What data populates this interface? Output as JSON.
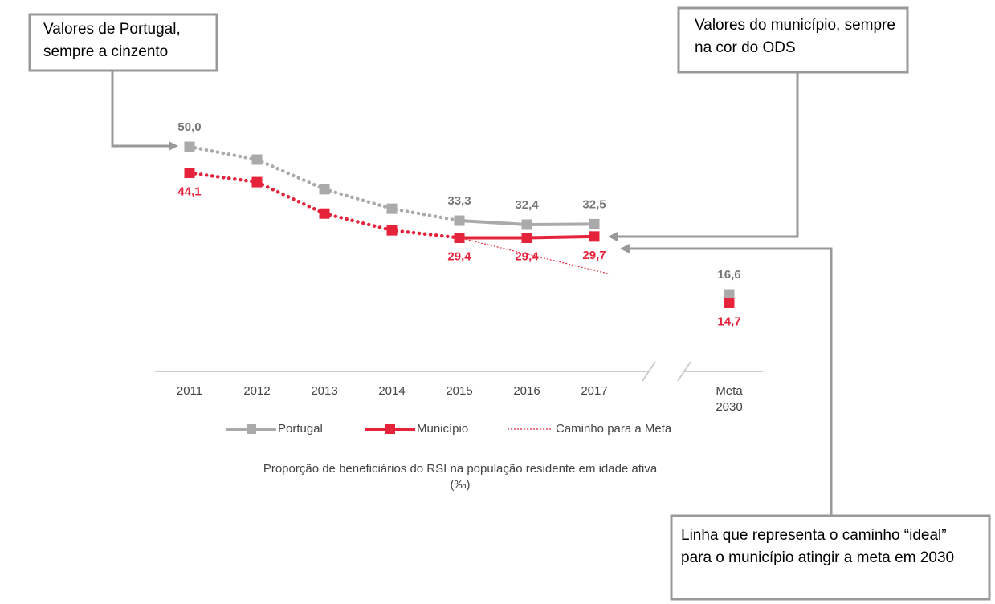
{
  "annotations": [
    "Valores de Portugal, sempre a cinzento",
    "Valores do município, sempre na cor do ODS",
    "Linha que representa o caminho “ideal” para o município atingir a meta em 2030"
  ],
  "chart_data": {
    "type": "line",
    "title": "Proporção de beneficiários do RSI na população residente em idade ativa (‰)",
    "categories": [
      "2011",
      "2012",
      "2013",
      "2014",
      "2015",
      "2016",
      "2017",
      "Meta 2030"
    ],
    "series": [
      {
        "name": "Portugal",
        "color": "#aaaaaa",
        "values": [
          50.0,
          47.1,
          40.4,
          36.0,
          33.3,
          32.4,
          32.5,
          16.6
        ],
        "value_labels": [
          "50,0",
          null,
          null,
          null,
          "33,3",
          "32,4",
          "32,5",
          "16,6"
        ]
      },
      {
        "name": "Município",
        "color": "#e5243b",
        "values": [
          44.1,
          42.0,
          34.9,
          31.1,
          29.4,
          29.4,
          29.7,
          14.7
        ],
        "value_labels": [
          "44,1",
          null,
          null,
          null,
          "29,4",
          "29,4",
          "29,7",
          "14,7"
        ]
      },
      {
        "name": "Caminho para a Meta",
        "color": "#e5243b"
      }
    ]
  }
}
